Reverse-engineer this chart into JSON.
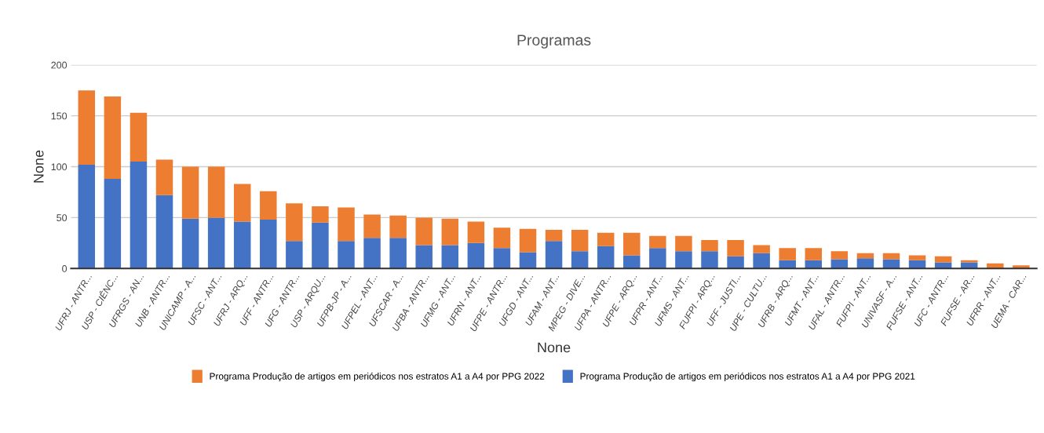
{
  "chart_data": {
    "type": "bar",
    "title": "Programas",
    "xlabel": "None",
    "ylabel": "None",
    "stacked": true,
    "grid": "y",
    "legend": "bottom",
    "categories": [
      "UFRJ - ANTR...",
      "USP - CIÊNC...",
      "UFRGS - AN...",
      "UNB - ANTR...",
      "UNICAMP - A...",
      "UFSC - ANT...",
      "UFRJ - ARQ...",
      "UFF - ANTR...",
      "UFG - ANTR...",
      "USP - ARQU...",
      "UFPB-JP - A...",
      "UFPEL - ANT...",
      "UFSCAR - A...",
      "UFBA - ANTR...",
      "UFMG - ANT...",
      "UFRN - ANT...",
      "UFPE - ANTR...",
      "UFGD - ANT...",
      "UFAM - ANT...",
      "MPEG - DIVE...",
      "UFPA - ANTR...",
      "UFPE - ARQ...",
      "UFPR - ANT...",
      "UFMS - ANT...",
      "FUFPI - ARQ...",
      "UFF - JUSTI...",
      "UPE - CULTU...",
      "UFRB - ARQ...",
      "UFMT - ANT...",
      "UFAL - ANTR...",
      "FUFPI - ANT...",
      "UNIVASF - A...",
      "FUFSE - ANT...",
      "UFC - ANTR...",
      "FUFSE - AR...",
      "UFRR - ANT...",
      "UEMA - CAR..."
    ],
    "series": [
      {
        "name": "Programa Produção de artigos em periódicos nos estratos A1 a A4 por PPG 2021",
        "color": "#4472c4",
        "values": [
          102,
          88,
          105,
          72,
          49,
          50,
          46,
          48,
          27,
          45,
          27,
          30,
          30,
          23,
          23,
          25,
          20,
          16,
          27,
          17,
          22,
          13,
          20,
          17,
          17,
          12,
          15,
          8,
          8,
          9,
          10,
          9,
          8,
          6,
          6,
          0,
          0
        ]
      },
      {
        "name": "Programa Produção de artigos em periódicos nos estratos A1 a A4 por PPG 2022",
        "color": "#ed7d31",
        "values": [
          73,
          81,
          48,
          35,
          51,
          50,
          37,
          28,
          37,
          16,
          33,
          23,
          22,
          27,
          26,
          21,
          20,
          23,
          11,
          21,
          13,
          22,
          12,
          15,
          11,
          16,
          8,
          12,
          12,
          8,
          5,
          6,
          5,
          6,
          2,
          5,
          3
        ]
      }
    ],
    "ylim": [
      0,
      200
    ],
    "yticks": [
      0,
      50,
      100,
      150,
      200
    ]
  }
}
